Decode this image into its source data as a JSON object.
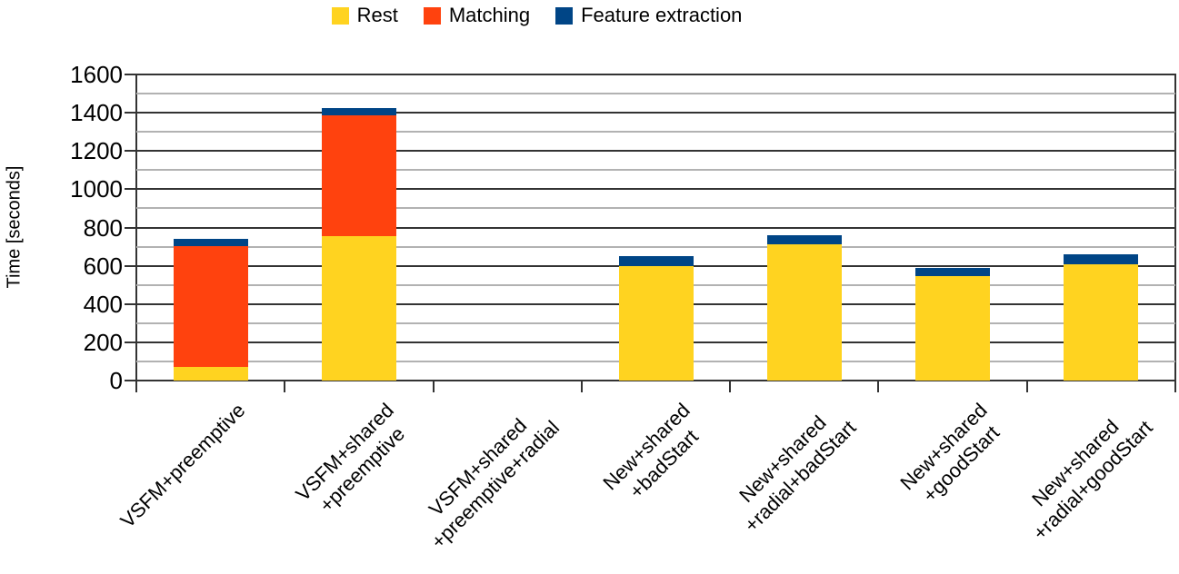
{
  "chart_data": {
    "type": "bar",
    "stacked": true,
    "title": "",
    "xlabel": "",
    "ylabel": "Time [seconds]",
    "ylim": [
      0,
      1600
    ],
    "yticks": [
      0,
      200,
      400,
      600,
      800,
      1000,
      1200,
      1400,
      1600
    ],
    "minor_tick_step": 100,
    "grid": "horizontal, major and minor",
    "legend_position": "top-center",
    "categories": [
      "VSFM+preemptive",
      "VSFM+shared\n+preemptive",
      "VSFM+shared\n+preemptive+radial",
      "New+shared\n+badStart",
      "New+shared\n+radial+badStart",
      "New+shared\n+goodStart",
      "New+shared\n+radial+goodStart"
    ],
    "series": [
      {
        "name": "Rest",
        "color": "#FFD320",
        "values": [
          70,
          755,
          0,
          600,
          710,
          545,
          610
        ]
      },
      {
        "name": "Matching",
        "color": "#FF420E",
        "values": [
          635,
          630,
          0,
          0,
          0,
          0,
          0
        ]
      },
      {
        "name": "Feature extraction",
        "color": "#004586",
        "values": [
          35,
          40,
          0,
          50,
          50,
          45,
          50
        ]
      }
    ],
    "colors": {
      "major_gridline": "#333333",
      "minor_gridline": "#b2b2b2",
      "axis": "#333333",
      "background": "#ffffff"
    }
  }
}
